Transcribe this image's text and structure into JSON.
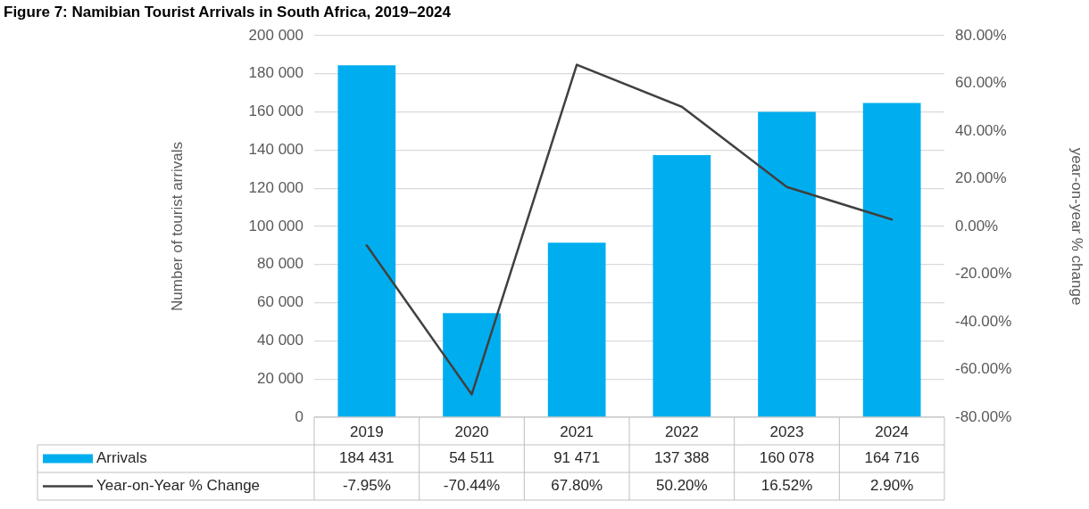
{
  "chart_data": {
    "type": "bar",
    "title": "Figure 7: Namibian Tourist Arrivals in South Africa, 2019–2024",
    "ylabel": "Number of tourist arrivals",
    "y2label": "year-on-year % change",
    "categories": [
      "2019",
      "2020",
      "2021",
      "2022",
      "2023",
      "2024"
    ],
    "series": [
      {
        "name": "Arrivals",
        "color": "#00aeef",
        "values": [
          184431,
          54511,
          91471,
          137388,
          160078,
          164716
        ],
        "value_labels": [
          "184 431",
          "54 511",
          "91 471",
          "137 388",
          "160 078",
          "164 716"
        ]
      },
      {
        "name": "Year-on-Year % Change",
        "type": "line",
        "axis": "y2",
        "color": "#404040",
        "values": [
          -7.95,
          -70.44,
          67.8,
          50.2,
          16.52,
          2.9
        ],
        "value_labels": [
          "-7.95%",
          "-70.44%",
          "67.80%",
          "50.20%",
          "16.52%",
          "2.90%"
        ]
      }
    ],
    "ylim": [
      0,
      200000
    ],
    "yticks": [
      {
        "value": 0,
        "label": "0"
      },
      {
        "value": 20000,
        "label": "20 000"
      },
      {
        "value": 40000,
        "label": "40 000"
      },
      {
        "value": 60000,
        "label": "60 000"
      },
      {
        "value": 80000,
        "label": "80 000"
      },
      {
        "value": 100000,
        "label": "100 000"
      },
      {
        "value": 120000,
        "label": "120 000"
      },
      {
        "value": 140000,
        "label": "140 000"
      },
      {
        "value": 160000,
        "label": "160 000"
      },
      {
        "value": 180000,
        "label": "180 000"
      },
      {
        "value": 200000,
        "label": "200 000"
      }
    ],
    "y2lim": [
      -80,
      80
    ],
    "y2ticks": [
      {
        "value": -80,
        "label": "-80.00%"
      },
      {
        "value": -60,
        "label": "-60.00%"
      },
      {
        "value": -40,
        "label": "-40.00%"
      },
      {
        "value": -20,
        "label": "-20.00%"
      },
      {
        "value": 0,
        "label": "0.00%"
      },
      {
        "value": 20,
        "label": "20.00%"
      },
      {
        "value": 40,
        "label": "40.00%"
      },
      {
        "value": 60,
        "label": "60.00%"
      },
      {
        "value": 80,
        "label": "80.00%"
      }
    ],
    "grid": "y",
    "legend": "bottom",
    "marker": "none",
    "line_style": "solid"
  }
}
